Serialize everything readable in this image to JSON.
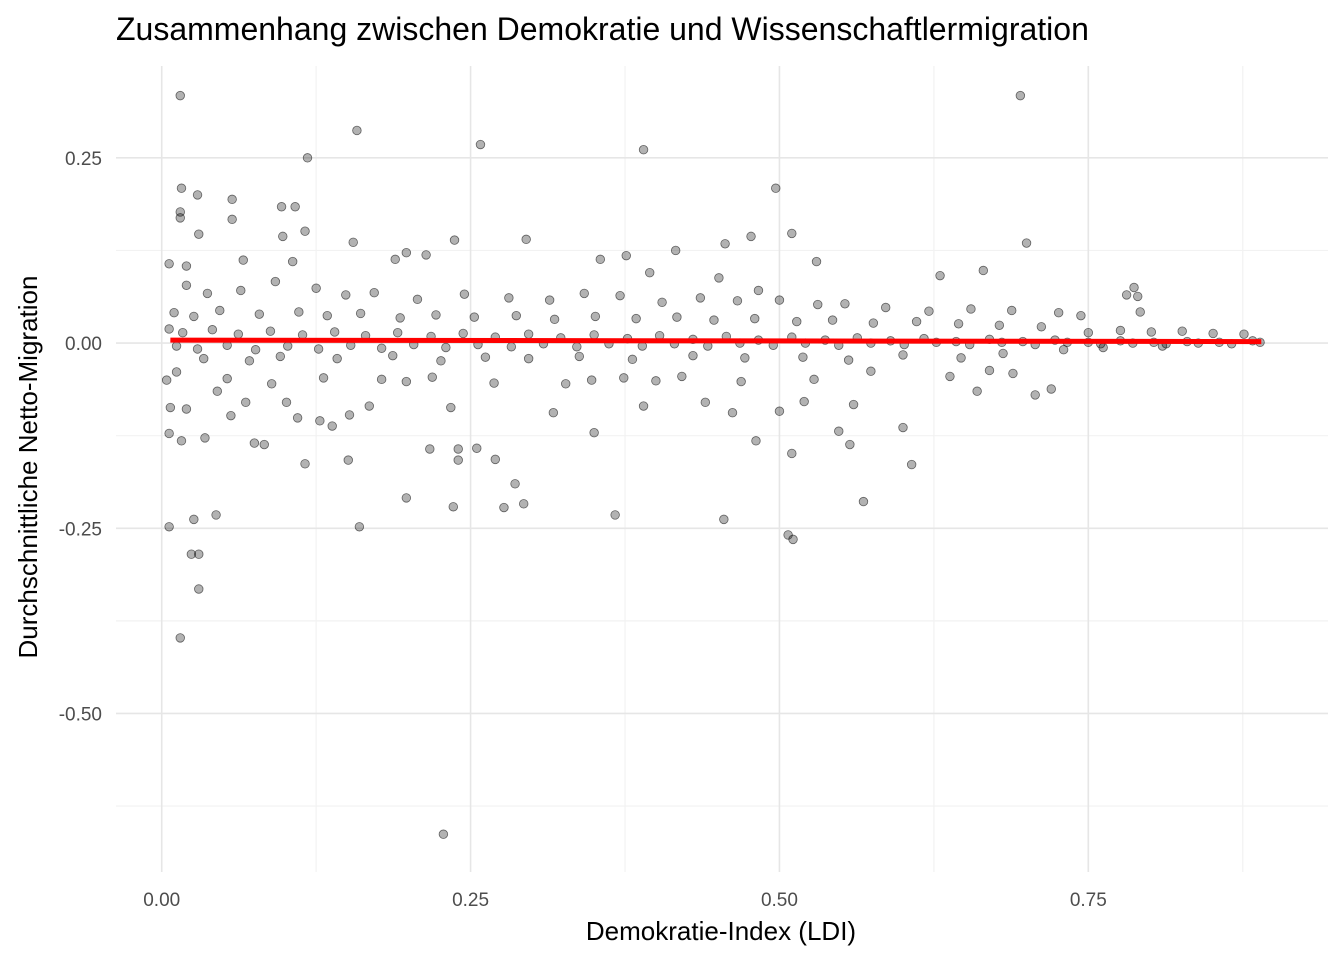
{
  "chart_data": {
    "type": "scatter",
    "title": "Zusammenhang zwischen Demokratie und Wissenschaftlermigration",
    "xlabel": "Demokratie-Index (LDI)",
    "ylabel": "Durchschnittliche Netto-Migration",
    "xlim": [
      -0.037,
      0.944
    ],
    "ylim": [
      -0.714,
      0.374
    ],
    "x_ticks": [
      0.0,
      0.25,
      0.5,
      0.75
    ],
    "x_tick_labels": [
      "0.00",
      "0.25",
      "0.50",
      "0.75"
    ],
    "y_ticks": [
      0.25,
      0.0,
      -0.25,
      -0.5
    ],
    "y_tick_labels": [
      "0.25",
      "0.00",
      "-0.25",
      "-0.50"
    ],
    "grid": true,
    "legend": "none",
    "point_color": "#000000",
    "point_alpha": 0.3,
    "trend_line": {
      "color": "#ff0000",
      "x": [
        0.007,
        0.89
      ],
      "y": [
        0.004,
        0.002
      ]
    },
    "series": [
      {
        "values": [
          [
            0.015,
            0.334
          ],
          [
            0.695,
            0.334
          ],
          [
            0.158,
            0.287
          ],
          [
            0.258,
            0.268
          ],
          [
            0.39,
            0.261
          ],
          [
            0.118,
            0.25
          ],
          [
            0.497,
            0.209
          ],
          [
            0.016,
            0.209
          ],
          [
            0.029,
            0.2
          ],
          [
            0.057,
            0.194
          ],
          [
            0.097,
            0.184
          ],
          [
            0.108,
            0.184
          ],
          [
            0.015,
            0.177
          ],
          [
            0.015,
            0.169
          ],
          [
            0.057,
            0.167
          ],
          [
            0.116,
            0.151
          ],
          [
            0.51,
            0.148
          ],
          [
            0.03,
            0.147
          ],
          [
            0.098,
            0.144
          ],
          [
            0.477,
            0.144
          ],
          [
            0.295,
            0.14
          ],
          [
            0.237,
            0.139
          ],
          [
            0.155,
            0.136
          ],
          [
            0.7,
            0.135
          ],
          [
            0.456,
            0.134
          ],
          [
            0.416,
            0.125
          ],
          [
            0.214,
            0.119
          ],
          [
            0.198,
            0.122
          ],
          [
            0.189,
            0.113
          ],
          [
            0.355,
            0.113
          ],
          [
            0.376,
            0.118
          ],
          [
            0.53,
            0.11
          ],
          [
            0.665,
            0.098
          ],
          [
            0.066,
            0.112
          ],
          [
            0.106,
            0.11
          ],
          [
            0.006,
            0.107
          ],
          [
            0.02,
            0.104
          ],
          [
            0.395,
            0.095
          ],
          [
            0.483,
            0.071
          ],
          [
            0.63,
            0.091
          ],
          [
            0.451,
            0.088
          ],
          [
            0.781,
            0.065
          ],
          [
            0.79,
            0.063
          ],
          [
            0.792,
            0.042
          ],
          [
            0.787,
            0.075
          ],
          [
            0.006,
            -0.248
          ],
          [
            0.026,
            -0.238
          ],
          [
            0.044,
            -0.232
          ],
          [
            0.024,
            -0.285
          ],
          [
            0.03,
            -0.285
          ],
          [
            0.03,
            -0.332
          ],
          [
            0.015,
            -0.398
          ],
          [
            0.228,
            -0.663
          ],
          [
            0.16,
            -0.248
          ],
          [
            0.198,
            -0.209
          ],
          [
            0.236,
            -0.221
          ],
          [
            0.277,
            -0.222
          ],
          [
            0.293,
            -0.217
          ],
          [
            0.286,
            -0.19
          ],
          [
            0.27,
            -0.157
          ],
          [
            0.24,
            -0.158
          ],
          [
            0.24,
            -0.143
          ],
          [
            0.255,
            -0.142
          ],
          [
            0.217,
            -0.143
          ],
          [
            0.151,
            -0.158
          ],
          [
            0.116,
            -0.163
          ],
          [
            0.367,
            -0.232
          ],
          [
            0.455,
            -0.238
          ],
          [
            0.507,
            -0.259
          ],
          [
            0.511,
            -0.265
          ],
          [
            0.51,
            -0.149
          ],
          [
            0.481,
            -0.132
          ],
          [
            0.548,
            -0.119
          ],
          [
            0.557,
            -0.137
          ],
          [
            0.568,
            -0.214
          ],
          [
            0.6,
            -0.114
          ],
          [
            0.607,
            -0.164
          ],
          [
            0.35,
            -0.121
          ],
          [
            0.006,
            -0.122
          ],
          [
            0.016,
            -0.132
          ],
          [
            0.035,
            -0.128
          ],
          [
            0.056,
            -0.098
          ],
          [
            0.075,
            -0.135
          ],
          [
            0.083,
            -0.137
          ],
          [
            0.11,
            -0.101
          ],
          [
            0.128,
            -0.105
          ],
          [
            0.138,
            -0.112
          ],
          [
            0.02,
            -0.089
          ],
          [
            0.007,
            -0.087
          ],
          [
            0.068,
            -0.08
          ],
          [
            0.045,
            -0.065
          ],
          [
            0.101,
            -0.08
          ],
          [
            0.152,
            -0.097
          ],
          [
            0.168,
            -0.085
          ],
          [
            0.234,
            -0.087
          ],
          [
            0.317,
            -0.094
          ],
          [
            0.39,
            -0.085
          ],
          [
            0.44,
            -0.08
          ],
          [
            0.462,
            -0.094
          ],
          [
            0.5,
            -0.092
          ],
          [
            0.52,
            -0.079
          ],
          [
            0.56,
            -0.083
          ],
          [
            0.66,
            -0.065
          ],
          [
            0.707,
            -0.07
          ],
          [
            0.72,
            -0.062
          ],
          [
            0.004,
            -0.05
          ],
          [
            0.012,
            -0.039
          ],
          [
            0.053,
            -0.048
          ],
          [
            0.089,
            -0.055
          ],
          [
            0.131,
            -0.047
          ],
          [
            0.178,
            -0.049
          ],
          [
            0.198,
            -0.052
          ],
          [
            0.219,
            -0.046
          ],
          [
            0.269,
            -0.054
          ],
          [
            0.327,
            -0.055
          ],
          [
            0.348,
            -0.05
          ],
          [
            0.374,
            -0.047
          ],
          [
            0.4,
            -0.051
          ],
          [
            0.421,
            -0.045
          ],
          [
            0.469,
            -0.052
          ],
          [
            0.528,
            -0.049
          ],
          [
            0.574,
            -0.038
          ],
          [
            0.638,
            -0.045
          ],
          [
            0.67,
            -0.037
          ],
          [
            0.689,
            -0.041
          ],
          [
            0.034,
            -0.021
          ],
          [
            0.071,
            -0.024
          ],
          [
            0.096,
            -0.018
          ],
          [
            0.142,
            -0.021
          ],
          [
            0.187,
            -0.017
          ],
          [
            0.226,
            -0.024
          ],
          [
            0.262,
            -0.019
          ],
          [
            0.297,
            -0.021
          ],
          [
            0.338,
            -0.018
          ],
          [
            0.381,
            -0.022
          ],
          [
            0.43,
            -0.017
          ],
          [
            0.472,
            -0.02
          ],
          [
            0.519,
            -0.019
          ],
          [
            0.556,
            -0.023
          ],
          [
            0.6,
            -0.016
          ],
          [
            0.647,
            -0.02
          ],
          [
            0.681,
            -0.014
          ],
          [
            0.73,
            -0.009
          ],
          [
            0.762,
            -0.006
          ],
          [
            0.81,
            -0.004
          ],
          [
            0.02,
            0.078
          ],
          [
            0.037,
            0.067
          ],
          [
            0.064,
            0.071
          ],
          [
            0.092,
            0.083
          ],
          [
            0.125,
            0.074
          ],
          [
            0.149,
            0.065
          ],
          [
            0.172,
            0.068
          ],
          [
            0.207,
            0.059
          ],
          [
            0.245,
            0.066
          ],
          [
            0.281,
            0.061
          ],
          [
            0.314,
            0.058
          ],
          [
            0.342,
            0.067
          ],
          [
            0.371,
            0.064
          ],
          [
            0.405,
            0.055
          ],
          [
            0.436,
            0.061
          ],
          [
            0.466,
            0.057
          ],
          [
            0.5,
            0.058
          ],
          [
            0.531,
            0.052
          ],
          [
            0.553,
            0.053
          ],
          [
            0.586,
            0.048
          ],
          [
            0.621,
            0.043
          ],
          [
            0.655,
            0.046
          ],
          [
            0.688,
            0.044
          ],
          [
            0.726,
            0.041
          ],
          [
            0.744,
            0.037
          ],
          [
            0.01,
            0.041
          ],
          [
            0.026,
            0.036
          ],
          [
            0.047,
            0.044
          ],
          [
            0.079,
            0.039
          ],
          [
            0.111,
            0.042
          ],
          [
            0.134,
            0.037
          ],
          [
            0.161,
            0.04
          ],
          [
            0.193,
            0.034
          ],
          [
            0.222,
            0.038
          ],
          [
            0.253,
            0.035
          ],
          [
            0.287,
            0.037
          ],
          [
            0.318,
            0.032
          ],
          [
            0.351,
            0.036
          ],
          [
            0.384,
            0.033
          ],
          [
            0.417,
            0.035
          ],
          [
            0.447,
            0.031
          ],
          [
            0.48,
            0.033
          ],
          [
            0.514,
            0.029
          ],
          [
            0.543,
            0.031
          ],
          [
            0.576,
            0.027
          ],
          [
            0.611,
            0.029
          ],
          [
            0.645,
            0.026
          ],
          [
            0.678,
            0.024
          ],
          [
            0.712,
            0.022
          ],
          [
            0.75,
            0.014
          ],
          [
            0.776,
            0.017
          ],
          [
            0.801,
            0.015
          ],
          [
            0.826,
            0.016
          ],
          [
            0.851,
            0.013
          ],
          [
            0.876,
            0.012
          ],
          [
            0.006,
            0.019
          ],
          [
            0.017,
            0.014
          ],
          [
            0.041,
            0.018
          ],
          [
            0.062,
            0.012
          ],
          [
            0.088,
            0.016
          ],
          [
            0.114,
            0.011
          ],
          [
            0.14,
            0.015
          ],
          [
            0.165,
            0.01
          ],
          [
            0.191,
            0.014
          ],
          [
            0.218,
            0.009
          ],
          [
            0.244,
            0.013
          ],
          [
            0.27,
            0.008
          ],
          [
            0.297,
            0.012
          ],
          [
            0.323,
            0.007
          ],
          [
            0.35,
            0.011
          ],
          [
            0.377,
            0.006
          ],
          [
            0.403,
            0.01
          ],
          [
            0.43,
            0.005
          ],
          [
            0.457,
            0.009
          ],
          [
            0.483,
            0.004
          ],
          [
            0.51,
            0.008
          ],
          [
            0.537,
            0.004
          ],
          [
            0.563,
            0.007
          ],
          [
            0.59,
            0.003
          ],
          [
            0.617,
            0.006
          ],
          [
            0.643,
            0.002
          ],
          [
            0.67,
            0.005
          ],
          [
            0.697,
            0.002
          ],
          [
            0.723,
            0.004
          ],
          [
            0.75,
            0.001
          ],
          [
            0.776,
            0.003
          ],
          [
            0.803,
            0.001
          ],
          [
            0.83,
            0.002
          ],
          [
            0.856,
            0.001
          ],
          [
            0.883,
            0.003
          ],
          [
            0.012,
            -0.004
          ],
          [
            0.029,
            -0.008
          ],
          [
            0.053,
            -0.003
          ],
          [
            0.076,
            -0.009
          ],
          [
            0.102,
            -0.004
          ],
          [
            0.127,
            -0.008
          ],
          [
            0.153,
            -0.003
          ],
          [
            0.178,
            -0.007
          ],
          [
            0.204,
            -0.002
          ],
          [
            0.23,
            -0.006
          ],
          [
            0.256,
            -0.002
          ],
          [
            0.283,
            -0.005
          ],
          [
            0.309,
            -0.001
          ],
          [
            0.336,
            -0.005
          ],
          [
            0.362,
            -0.001
          ],
          [
            0.389,
            -0.004
          ],
          [
            0.415,
            -0.001
          ],
          [
            0.442,
            -0.004
          ],
          [
            0.468,
            0.0
          ],
          [
            0.495,
            -0.003
          ],
          [
            0.521,
            0.0
          ],
          [
            0.548,
            -0.003
          ],
          [
            0.574,
            0.0
          ],
          [
            0.601,
            -0.002
          ],
          [
            0.627,
            0.001
          ],
          [
            0.654,
            -0.002
          ],
          [
            0.68,
            0.001
          ],
          [
            0.707,
            -0.002
          ],
          [
            0.733,
            0.001
          ],
          [
            0.76,
            -0.001
          ],
          [
            0.786,
            0.0
          ],
          [
            0.813,
            -0.001
          ],
          [
            0.839,
            0.0
          ],
          [
            0.866,
            -0.001
          ],
          [
            0.889,
            0.001
          ]
        ]
      }
    ]
  }
}
